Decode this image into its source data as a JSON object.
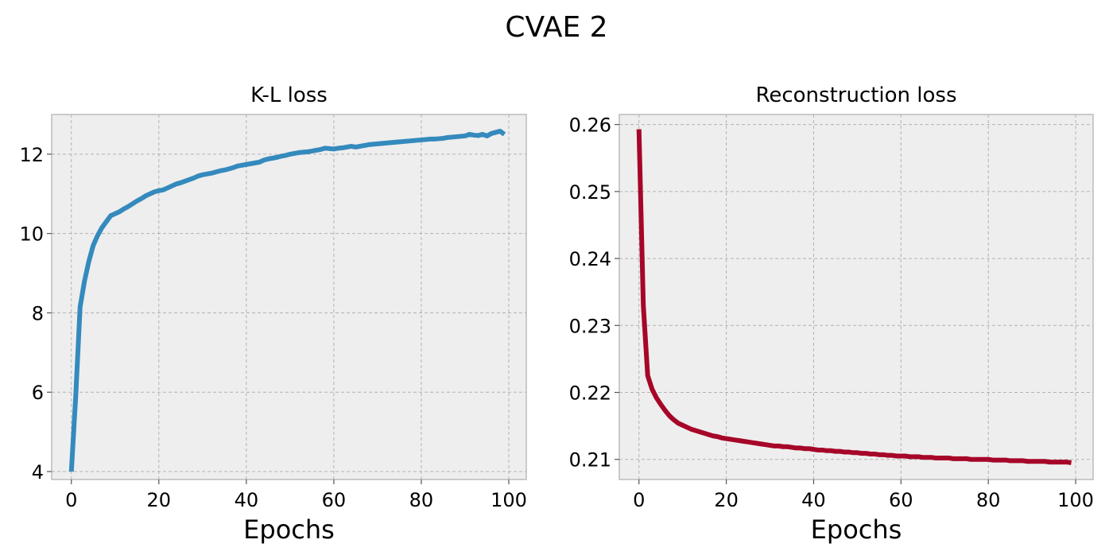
{
  "figure": {
    "suptitle": "CVAE 2"
  },
  "chart_data": [
    {
      "type": "line",
      "title": "K-L loss",
      "xlabel": "Epochs",
      "ylabel": "",
      "xlim": [
        -4.5,
        104
      ],
      "ylim": [
        3.8,
        13.0
      ],
      "xticks": [
        0,
        20,
        40,
        60,
        80,
        100
      ],
      "xtick_labels": [
        "0",
        "20",
        "40",
        "60",
        "80",
        "100"
      ],
      "yticks": [
        4,
        6,
        8,
        10,
        12
      ],
      "ytick_labels": [
        "4",
        "6",
        "8",
        "10",
        "12"
      ],
      "grid": true,
      "color": "#348abd",
      "series": [
        {
          "x": [
            0,
            1,
            2,
            3,
            4,
            5,
            6,
            7,
            8,
            9,
            10,
            11,
            12,
            13,
            14,
            15,
            16,
            17,
            18,
            19,
            20,
            21,
            22,
            23,
            24,
            25,
            26,
            27,
            28,
            29,
            30,
            31,
            32,
            33,
            34,
            35,
            36,
            37,
            38,
            39,
            40,
            41,
            42,
            43,
            44,
            45,
            46,
            47,
            48,
            49,
            50,
            51,
            52,
            53,
            54,
            55,
            56,
            57,
            58,
            59,
            60,
            61,
            62,
            63,
            64,
            65,
            66,
            67,
            68,
            69,
            70,
            71,
            72,
            73,
            74,
            75,
            76,
            77,
            78,
            79,
            80,
            81,
            82,
            83,
            84,
            85,
            86,
            87,
            88,
            89,
            90,
            91,
            92,
            93,
            94,
            95,
            96,
            97,
            98,
            99
          ],
          "y": [
            4.0,
            5.9,
            8.15,
            8.8,
            9.3,
            9.7,
            9.95,
            10.15,
            10.3,
            10.45,
            10.5,
            10.55,
            10.62,
            10.68,
            10.75,
            10.82,
            10.88,
            10.95,
            11.0,
            11.05,
            11.08,
            11.1,
            11.15,
            11.2,
            11.25,
            11.28,
            11.32,
            11.36,
            11.4,
            11.45,
            11.48,
            11.5,
            11.52,
            11.55,
            11.58,
            11.6,
            11.63,
            11.66,
            11.7,
            11.72,
            11.74,
            11.76,
            11.78,
            11.8,
            11.85,
            11.88,
            11.9,
            11.92,
            11.95,
            11.97,
            12.0,
            12.02,
            12.04,
            12.05,
            12.06,
            12.08,
            12.1,
            12.12,
            12.15,
            12.14,
            12.13,
            12.15,
            12.16,
            12.18,
            12.2,
            12.18,
            12.2,
            12.22,
            12.24,
            12.25,
            12.26,
            12.27,
            12.28,
            12.29,
            12.3,
            12.31,
            12.32,
            12.33,
            12.34,
            12.35,
            12.36,
            12.37,
            12.38,
            12.38,
            12.39,
            12.4,
            12.42,
            12.43,
            12.44,
            12.45,
            12.46,
            12.5,
            12.48,
            12.47,
            12.5,
            12.46,
            12.52,
            12.55,
            12.58,
            12.5
          ]
        }
      ]
    },
    {
      "type": "line",
      "title": "Reconstruction loss",
      "xlabel": "Epochs",
      "ylabel": "",
      "xlim": [
        -4.5,
        104
      ],
      "ylim": [
        0.207,
        0.2615
      ],
      "xticks": [
        0,
        20,
        40,
        60,
        80,
        100
      ],
      "xtick_labels": [
        "0",
        "20",
        "40",
        "60",
        "80",
        "100"
      ],
      "yticks": [
        0.21,
        0.22,
        0.23,
        0.24,
        0.25,
        0.26
      ],
      "ytick_labels": [
        "0.21",
        "0.22",
        "0.23",
        "0.24",
        "0.25",
        "0.26"
      ],
      "grid": true,
      "color": "#a60628",
      "series": [
        {
          "x": [
            0,
            1,
            2,
            3,
            4,
            5,
            6,
            7,
            8,
            9,
            10,
            11,
            12,
            13,
            14,
            15,
            16,
            17,
            18,
            19,
            20,
            21,
            22,
            23,
            24,
            25,
            26,
            27,
            28,
            29,
            30,
            31,
            32,
            33,
            34,
            35,
            36,
            37,
            38,
            39,
            40,
            41,
            42,
            43,
            44,
            45,
            46,
            47,
            48,
            49,
            50,
            51,
            52,
            53,
            54,
            55,
            56,
            57,
            58,
            59,
            60,
            61,
            62,
            63,
            64,
            65,
            66,
            67,
            68,
            69,
            70,
            71,
            72,
            73,
            74,
            75,
            76,
            77,
            78,
            79,
            80,
            81,
            82,
            83,
            84,
            85,
            86,
            87,
            88,
            89,
            90,
            91,
            92,
            93,
            94,
            95,
            96,
            97,
            98,
            99
          ],
          "y": [
            0.2593,
            0.233,
            0.2225,
            0.2205,
            0.2192,
            0.2182,
            0.2173,
            0.2165,
            0.2159,
            0.2154,
            0.2151,
            0.2148,
            0.2145,
            0.2143,
            0.2141,
            0.2139,
            0.2137,
            0.2135,
            0.2134,
            0.2132,
            0.2131,
            0.213,
            0.2129,
            0.2128,
            0.2127,
            0.2126,
            0.2125,
            0.2124,
            0.2123,
            0.2122,
            0.2121,
            0.212,
            0.212,
            0.2119,
            0.2119,
            0.2118,
            0.2117,
            0.2117,
            0.2116,
            0.2116,
            0.2115,
            0.2114,
            0.2114,
            0.2113,
            0.2113,
            0.2112,
            0.2112,
            0.2111,
            0.2111,
            0.211,
            0.211,
            0.2109,
            0.2109,
            0.2108,
            0.2108,
            0.2107,
            0.2107,
            0.2106,
            0.2106,
            0.2105,
            0.2105,
            0.2105,
            0.2104,
            0.2104,
            0.2104,
            0.2103,
            0.2103,
            0.2103,
            0.2102,
            0.2102,
            0.2102,
            0.2102,
            0.2101,
            0.2101,
            0.2101,
            0.2101,
            0.21,
            0.21,
            0.21,
            0.21,
            0.21,
            0.2099,
            0.2099,
            0.2099,
            0.2099,
            0.2098,
            0.2098,
            0.2098,
            0.2098,
            0.2097,
            0.2097,
            0.2097,
            0.2097,
            0.2097,
            0.2096,
            0.2096,
            0.2096,
            0.2096,
            0.2096,
            0.2095
          ]
        }
      ]
    }
  ]
}
